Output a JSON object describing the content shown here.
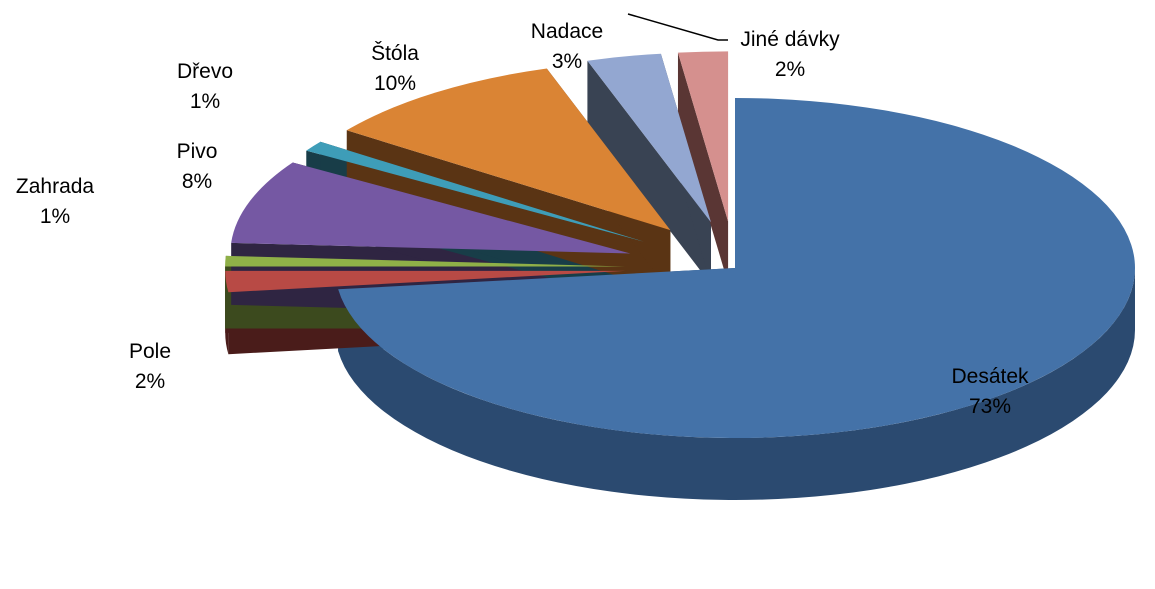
{
  "chart_data": {
    "type": "pie",
    "style": "3d-exploded",
    "legend": "none",
    "slices": [
      {
        "name": "Desátek",
        "value": 73,
        "label": "73%",
        "color": "#4472A8",
        "side_color": "#2B4A70"
      },
      {
        "name": "Pole",
        "value": 2,
        "label": "2%",
        "color": "#B84A45",
        "side_color": "#4A1C1A"
      },
      {
        "name": "Zahrada",
        "value": 1,
        "label": "1%",
        "color": "#8FB048",
        "side_color": "#3C4A1E"
      },
      {
        "name": "Pivo",
        "value": 8,
        "label": "8%",
        "color": "#7558A3",
        "side_color": "#2F2542"
      },
      {
        "name": "Dřevo",
        "value": 1,
        "label": "1%",
        "color": "#3E9DB8",
        "side_color": "#183D48"
      },
      {
        "name": "Štóla",
        "value": 10,
        "label": "10%",
        "color": "#DA8434",
        "side_color": "#5A3414"
      },
      {
        "name": "Nadace",
        "value": 3,
        "label": "3%",
        "color": "#93A7D1",
        "side_color": "#394353"
      },
      {
        "name": "Jiné dávky",
        "value": 2,
        "label": "2%",
        "color": "#D5908E",
        "side_color": "#5A3634"
      }
    ]
  }
}
